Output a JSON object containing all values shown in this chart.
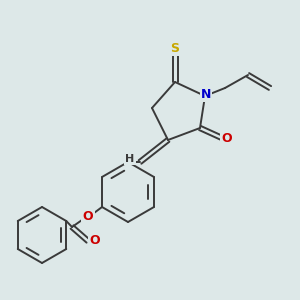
{
  "bg_color": "#dde8e8",
  "bond_color": "#3a3a3a",
  "atom_colors": {
    "S": "#c8a800",
    "N": "#0000cc",
    "O": "#cc0000",
    "H": "#3a3a3a"
  },
  "figsize": [
    3.0,
    3.0
  ],
  "dpi": 100,
  "lw": 1.4,
  "font_size": 8.5
}
